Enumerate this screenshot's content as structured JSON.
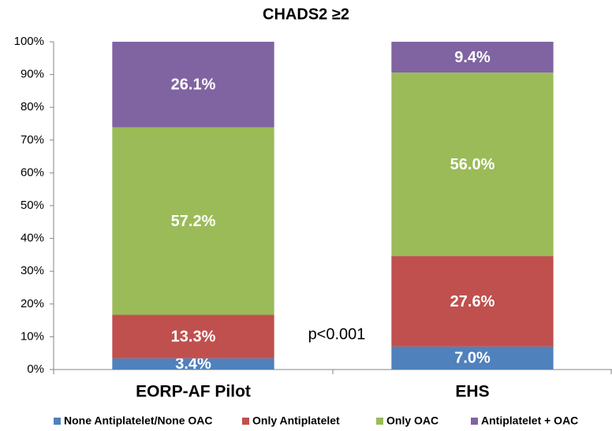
{
  "chart_data": {
    "type": "stacked-bar",
    "title": "CHADS2 ≥2",
    "categories": [
      "EORP-AF Pilot",
      "EHS"
    ],
    "series": [
      {
        "name": "None Antiplatelet/None OAC",
        "color": "#4f81bd",
        "values": [
          3.4,
          7.0
        ],
        "value_labels": [
          "3.4%",
          "7.0%"
        ]
      },
      {
        "name": "Only Antiplatelet",
        "color": "#c0504d",
        "values": [
          13.3,
          27.6
        ],
        "value_labels": [
          "13.3%",
          "27.6%"
        ]
      },
      {
        "name": "Only OAC",
        "color": "#9bbb59",
        "values": [
          57.2,
          56.0
        ],
        "value_labels": [
          "57.2%",
          "56.0%"
        ]
      },
      {
        "name": "Antiplatelet + OAC",
        "color": "#8064a2",
        "values": [
          26.1,
          9.4
        ],
        "value_labels": [
          "26.1%",
          "9.4%"
        ]
      }
    ],
    "annotation": "p<0.001",
    "ylim": [
      0,
      100
    ],
    "yticks": [
      {
        "value": 0,
        "label": "0%"
      },
      {
        "value": 10,
        "label": "10%"
      },
      {
        "value": 20,
        "label": "20%"
      },
      {
        "value": 30,
        "label": "30%"
      },
      {
        "value": 40,
        "label": "40%"
      },
      {
        "value": 50,
        "label": "50%"
      },
      {
        "value": 60,
        "label": "60%"
      },
      {
        "value": 70,
        "label": "70%"
      },
      {
        "value": 80,
        "label": "80%"
      },
      {
        "value": 90,
        "label": "90%"
      },
      {
        "value": 100,
        "label": "100%"
      }
    ],
    "legend": "bottom"
  }
}
